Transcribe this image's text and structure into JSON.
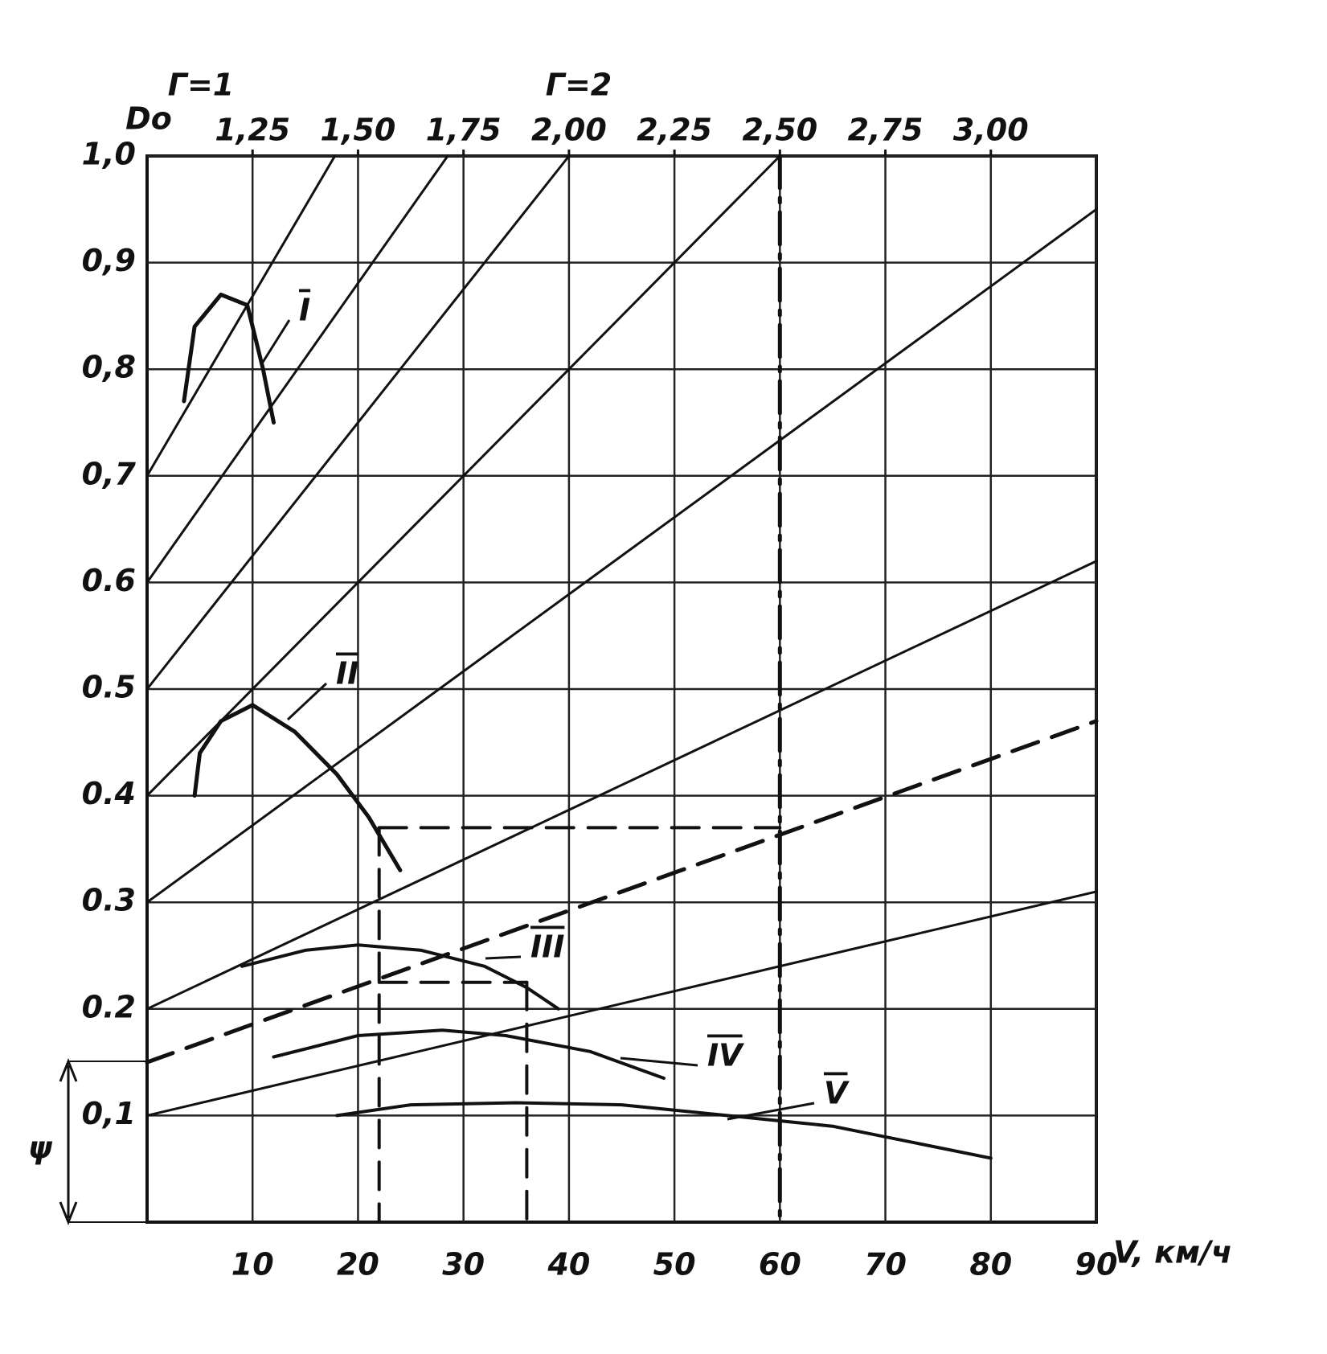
{
  "chart_data": {
    "type": "line",
    "x_label": "V, км/ч",
    "y_label": "ψ",
    "x2_label": "Do",
    "annotations": [
      "Г=1",
      "Г=2"
    ],
    "color": "#111111",
    "grid": true,
    "xlim": [
      0,
      90
    ],
    "xticks": [
      10,
      20,
      30,
      40,
      50,
      60,
      70,
      80,
      90
    ],
    "x2lim": [
      1.0,
      3.25
    ],
    "x2ticks": [
      {
        "value": 1.25,
        "label": "1,25"
      },
      {
        "value": 1.5,
        "label": "1,50"
      },
      {
        "value": 1.75,
        "label": "1,75"
      },
      {
        "value": 2.0,
        "label": "2,00"
      },
      {
        "value": 2.25,
        "label": "2,25"
      },
      {
        "value": 2.5,
        "label": "2,50"
      },
      {
        "value": 2.75,
        "label": "2,75"
      },
      {
        "value": 3.0,
        "label": "3,00"
      }
    ],
    "ylim": [
      0,
      1.0
    ],
    "yticks": [
      {
        "value": 0.1,
        "label": "0,1"
      },
      {
        "value": 0.2,
        "label": "0.2"
      },
      {
        "value": 0.3,
        "label": "0.3"
      },
      {
        "value": 0.4,
        "label": "0.4"
      },
      {
        "value": 0.5,
        "label": "0.5"
      },
      {
        "value": 0.6,
        "label": "0.6"
      },
      {
        "value": 0.7,
        "label": "0,7"
      },
      {
        "value": 0.8,
        "label": "0,8"
      },
      {
        "value": 0.9,
        "label": "0,9"
      },
      {
        "value": 1.0,
        "label": "1,0"
      }
    ],
    "series": [
      {
        "name": "I",
        "style": "solid",
        "width": 5,
        "x": [
          3.5,
          4.5,
          7,
          9.5,
          11,
          12
        ],
        "values": [
          0.77,
          0.84,
          0.87,
          0.86,
          0.8,
          0.75
        ]
      },
      {
        "name": "II",
        "style": "solid",
        "width": 5,
        "x": [
          4.5,
          5,
          7,
          10,
          14,
          18,
          21,
          24
        ],
        "values": [
          0.4,
          0.44,
          0.47,
          0.485,
          0.46,
          0.42,
          0.38,
          0.33
        ]
      },
      {
        "name": "III",
        "style": "solid",
        "width": 4,
        "x": [
          9,
          15,
          20,
          26,
          32,
          36,
          39
        ],
        "values": [
          0.24,
          0.255,
          0.26,
          0.255,
          0.24,
          0.22,
          0.2
        ]
      },
      {
        "name": "IV",
        "style": "solid",
        "width": 4,
        "x": [
          12,
          20,
          28,
          34,
          42,
          49
        ],
        "values": [
          0.155,
          0.175,
          0.18,
          0.175,
          0.16,
          0.135
        ]
      },
      {
        "name": "V",
        "style": "solid",
        "width": 4,
        "x": [
          18,
          25,
          35,
          45,
          55,
          65,
          80
        ],
        "values": [
          0.1,
          0.11,
          0.112,
          0.11,
          0.1,
          0.09,
          0.06
        ]
      },
      {
        "style": "solid",
        "width": 3,
        "x": [
          0,
          17.8
        ],
        "values": [
          0.7,
          1.0
        ]
      },
      {
        "style": "solid",
        "width": 3,
        "x": [
          0,
          28.5
        ],
        "values": [
          0.6,
          1.0
        ]
      },
      {
        "style": "solid",
        "width": 3,
        "x": [
          0,
          40
        ],
        "values": [
          0.5,
          1.0
        ]
      },
      {
        "style": "solid",
        "width": 3,
        "x": [
          0,
          60
        ],
        "values": [
          0.4,
          1.0
        ]
      },
      {
        "style": "solid",
        "width": 3,
        "x": [
          0,
          90
        ],
        "values": [
          0.3,
          0.95
        ]
      },
      {
        "style": "solid",
        "width": 3,
        "x": [
          0,
          90
        ],
        "values": [
          0.2,
          0.62
        ]
      },
      {
        "style": "solid",
        "width": 3,
        "x": [
          0,
          90
        ],
        "values": [
          0.1,
          0.31
        ]
      },
      {
        "style": "dashed",
        "width": 5,
        "x": [
          0,
          90
        ],
        "values": [
          0.15,
          0.47
        ]
      },
      {
        "style": "dashed",
        "width": 4,
        "x": [
          22,
          60
        ],
        "values": [
          0.37,
          0.37
        ]
      },
      {
        "style": "dashed",
        "width": 4,
        "x": [
          22,
          22
        ],
        "values": [
          0.37,
          0
        ]
      },
      {
        "style": "dashdot",
        "width": 5,
        "x": [
          60,
          60
        ],
        "values": [
          1.0,
          0
        ]
      },
      {
        "style": "dashed",
        "width": 4,
        "x": [
          22,
          36
        ],
        "values": [
          0.225,
          0.225
        ]
      },
      {
        "style": "dashed",
        "width": 4,
        "x": [
          36,
          36
        ],
        "values": [
          0.225,
          0
        ]
      }
    ]
  }
}
